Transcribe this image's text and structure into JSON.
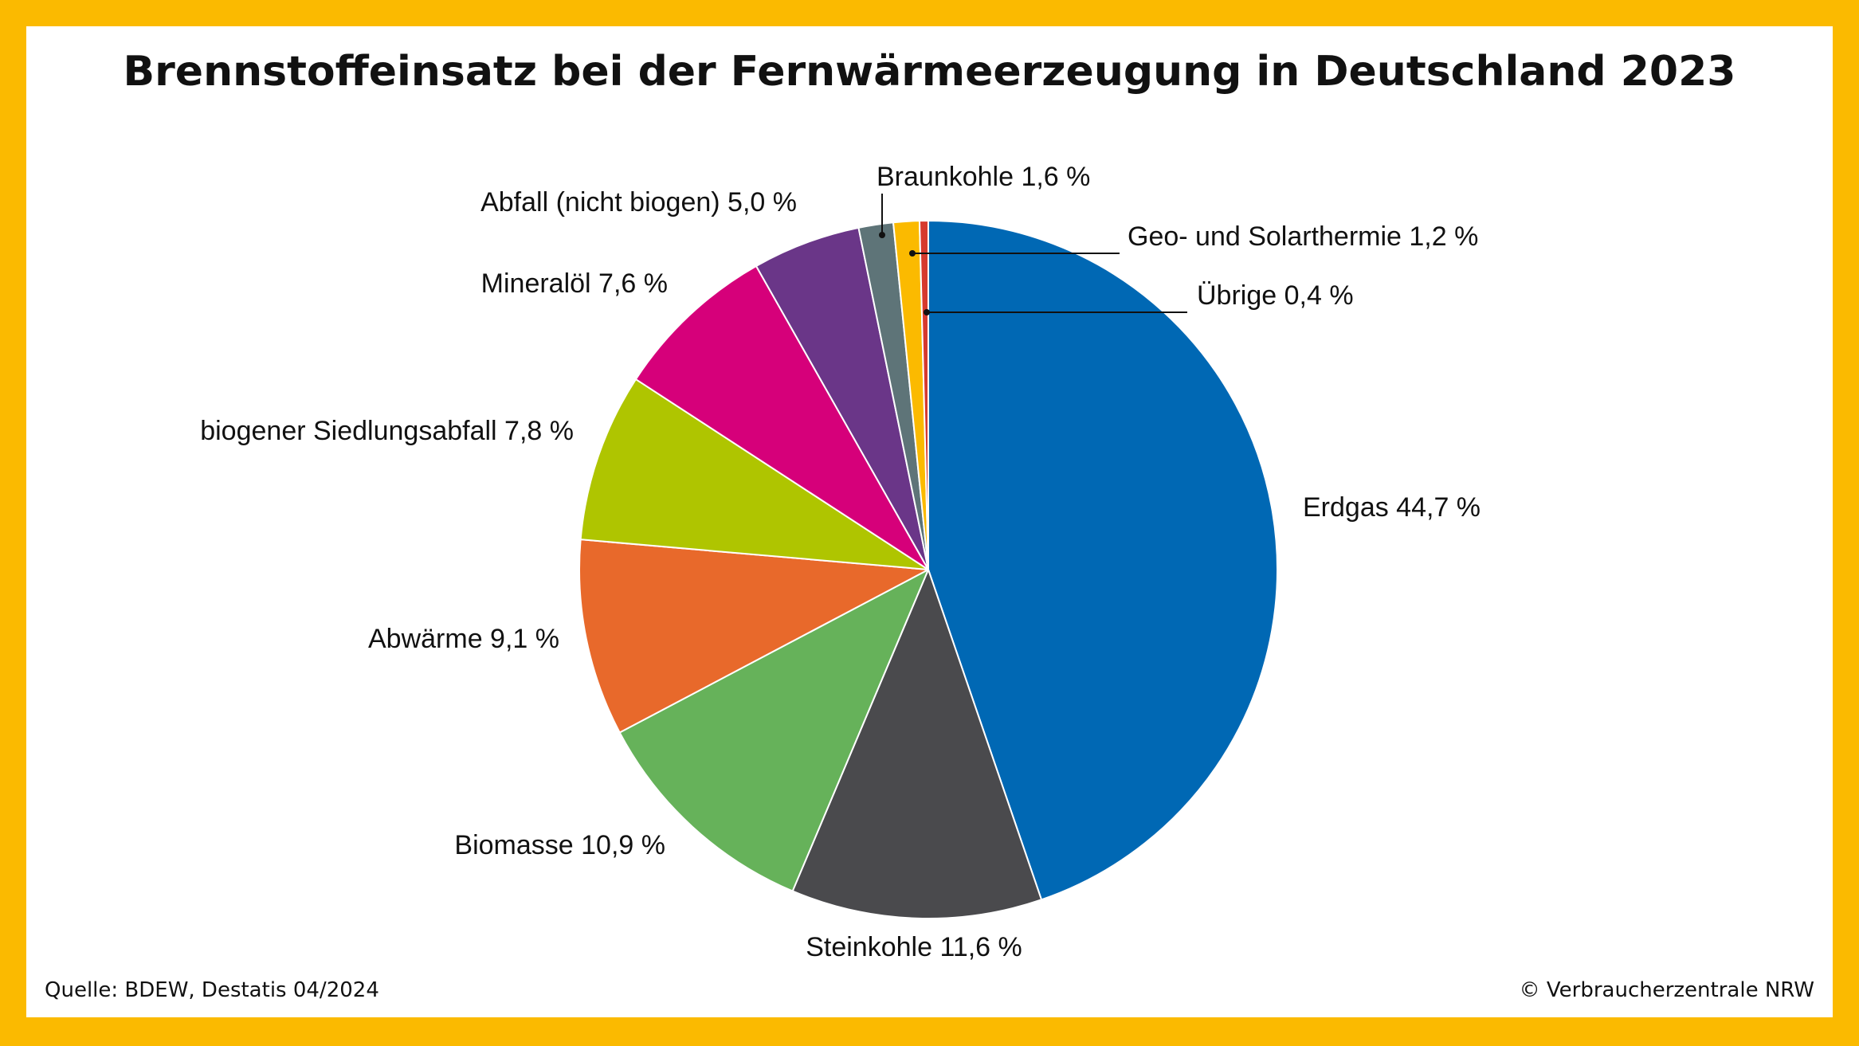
{
  "chart_data": {
    "type": "pie",
    "title": "Brennstoffeinsatz bei der Fernwärmeerzeugung in Deutschland 2023",
    "unit": "%",
    "slices": [
      {
        "name": "Erdgas",
        "value": 44.7,
        "label": "Erdgas 44,7 %",
        "color": "#0068B4"
      },
      {
        "name": "Steinkohle",
        "value": 11.6,
        "label": "Steinkohle 11,6 %",
        "color": "#4A4A4D"
      },
      {
        "name": "Biomasse",
        "value": 10.9,
        "label": "Biomasse 10,9 %",
        "color": "#66B25A"
      },
      {
        "name": "Abwärme",
        "value": 9.1,
        "label": "Abwärme 9,1 %",
        "color": "#E8692B"
      },
      {
        "name": "biogener Siedlungsabfall",
        "value": 7.8,
        "label": "biogener Siedlungsabfall 7,8 %",
        "color": "#AFC500"
      },
      {
        "name": "Mineralöl",
        "value": 7.6,
        "label": "Mineralöl 7,6 %",
        "color": "#D6007A"
      },
      {
        "name": "Abfall (nicht biogen)",
        "value": 5.0,
        "label": "Abfall (nicht biogen) 5,0 %",
        "color": "#6A3688"
      },
      {
        "name": "Braunkohle",
        "value": 1.6,
        "label": "Braunkohle 1,6 %",
        "color": "#5E7478"
      },
      {
        "name": "Geo- und Solarthermie",
        "value": 1.2,
        "label": "Geo- und Solarthermie 1,2 %",
        "color": "#FBBA00"
      },
      {
        "name": "Übrige",
        "value": 0.4,
        "label": "Übrige 0,4 %",
        "color": "#D63A2E"
      }
    ]
  },
  "footer": {
    "source": "Quelle: BDEW, Destatis 04/2024",
    "copyright": "© Verbraucherzentrale NRW"
  },
  "colors": {
    "frame": "#FBBA00",
    "background": "#FFFFFF"
  }
}
